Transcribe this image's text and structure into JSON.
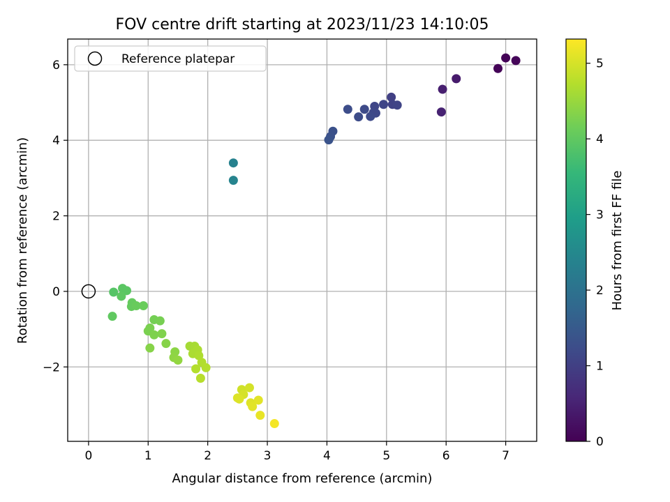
{
  "chart_data": {
    "type": "scatter",
    "title": "FOV centre drift starting at 2023/11/23 14:10:05",
    "xlabel": "Angular distance from reference (arcmin)",
    "ylabel": "Rotation from reference (arcmin)",
    "xlim": [
      -0.35,
      7.52
    ],
    "ylim": [
      -3.97,
      6.68
    ],
    "xticks": [
      0,
      1,
      2,
      3,
      4,
      5,
      6,
      7
    ],
    "yticks": [
      -2,
      0,
      2,
      4,
      6
    ],
    "grid": true,
    "legend": {
      "position": "top-left",
      "entries": [
        "Reference platepar"
      ]
    },
    "reference": {
      "x": 0,
      "y": 0
    },
    "colorbar": {
      "label": "Hours from first FF file",
      "range": [
        0,
        5.32
      ],
      "ticks": [
        0,
        1,
        2,
        3,
        4,
        5
      ],
      "colormap": "viridis"
    },
    "points": [
      {
        "x": 6.87,
        "y": 5.9,
        "c": 0.05
      },
      {
        "x": 7.0,
        "y": 6.18,
        "c": 0.03
      },
      {
        "x": 7.17,
        "y": 6.11,
        "c": 0.08
      },
      {
        "x": 6.17,
        "y": 5.63,
        "c": 0.4
      },
      {
        "x": 5.94,
        "y": 5.35,
        "c": 0.45
      },
      {
        "x": 5.92,
        "y": 4.75,
        "c": 0.5
      },
      {
        "x": 5.08,
        "y": 5.14,
        "c": 1.0
      },
      {
        "x": 5.1,
        "y": 4.95,
        "c": 1.05
      },
      {
        "x": 5.18,
        "y": 4.93,
        "c": 1.08
      },
      {
        "x": 4.95,
        "y": 4.95,
        "c": 1.1
      },
      {
        "x": 4.8,
        "y": 4.9,
        "c": 1.12
      },
      {
        "x": 4.78,
        "y": 4.73,
        "c": 1.15
      },
      {
        "x": 4.82,
        "y": 4.72,
        "c": 1.15
      },
      {
        "x": 4.73,
        "y": 4.63,
        "c": 1.18
      },
      {
        "x": 4.63,
        "y": 4.82,
        "c": 1.2
      },
      {
        "x": 4.53,
        "y": 4.62,
        "c": 1.22
      },
      {
        "x": 4.35,
        "y": 4.82,
        "c": 1.25
      },
      {
        "x": 4.1,
        "y": 4.24,
        "c": 1.3
      },
      {
        "x": 4.06,
        "y": 4.1,
        "c": 1.32
      },
      {
        "x": 4.03,
        "y": 4.01,
        "c": 1.35
      },
      {
        "x": 2.43,
        "y": 3.4,
        "c": 2.35
      },
      {
        "x": 2.43,
        "y": 2.94,
        "c": 2.4
      },
      {
        "x": 0.42,
        "y": -0.02,
        "c": 3.9
      },
      {
        "x": 0.57,
        "y": 0.08,
        "c": 3.95
      },
      {
        "x": 0.64,
        "y": 0.02,
        "c": 3.95
      },
      {
        "x": 0.55,
        "y": -0.13,
        "c": 3.98
      },
      {
        "x": 0.4,
        "y": -0.66,
        "c": 4.0
      },
      {
        "x": 0.73,
        "y": -0.3,
        "c": 4.05
      },
      {
        "x": 0.72,
        "y": -0.4,
        "c": 4.05
      },
      {
        "x": 0.8,
        "y": -0.38,
        "c": 4.08
      },
      {
        "x": 0.92,
        "y": -0.38,
        "c": 4.1
      },
      {
        "x": 1.1,
        "y": -0.75,
        "c": 4.2
      },
      {
        "x": 1.2,
        "y": -0.78,
        "c": 4.22
      },
      {
        "x": 1.03,
        "y": -0.97,
        "c": 4.25
      },
      {
        "x": 1.0,
        "y": -1.05,
        "c": 4.25
      },
      {
        "x": 1.1,
        "y": -1.15,
        "c": 4.28
      },
      {
        "x": 1.23,
        "y": -1.12,
        "c": 4.3
      },
      {
        "x": 1.3,
        "y": -1.38,
        "c": 4.35
      },
      {
        "x": 1.03,
        "y": -1.5,
        "c": 4.35
      },
      {
        "x": 1.45,
        "y": -1.6,
        "c": 4.4
      },
      {
        "x": 1.43,
        "y": -1.75,
        "c": 4.42
      },
      {
        "x": 1.5,
        "y": -1.82,
        "c": 4.45
      },
      {
        "x": 1.7,
        "y": -1.45,
        "c": 4.6
      },
      {
        "x": 1.78,
        "y": -1.45,
        "c": 4.62
      },
      {
        "x": 1.83,
        "y": -1.55,
        "c": 4.65
      },
      {
        "x": 1.75,
        "y": -1.65,
        "c": 4.65
      },
      {
        "x": 1.85,
        "y": -1.7,
        "c": 4.68
      },
      {
        "x": 1.9,
        "y": -1.88,
        "c": 4.7
      },
      {
        "x": 1.97,
        "y": -2.02,
        "c": 4.72
      },
      {
        "x": 1.8,
        "y": -2.05,
        "c": 4.72
      },
      {
        "x": 1.88,
        "y": -2.3,
        "c": 4.75
      },
      {
        "x": 2.57,
        "y": -2.6,
        "c": 4.95
      },
      {
        "x": 2.7,
        "y": -2.55,
        "c": 4.98
      },
      {
        "x": 2.6,
        "y": -2.73,
        "c": 5.0
      },
      {
        "x": 2.5,
        "y": -2.82,
        "c": 5.05
      },
      {
        "x": 2.53,
        "y": -2.85,
        "c": 5.05
      },
      {
        "x": 2.72,
        "y": -2.95,
        "c": 5.08
      },
      {
        "x": 2.85,
        "y": -2.88,
        "c": 5.1
      },
      {
        "x": 2.75,
        "y": -3.05,
        "c": 5.1
      },
      {
        "x": 2.88,
        "y": -3.28,
        "c": 5.15
      },
      {
        "x": 3.12,
        "y": -3.5,
        "c": 5.25
      }
    ]
  }
}
